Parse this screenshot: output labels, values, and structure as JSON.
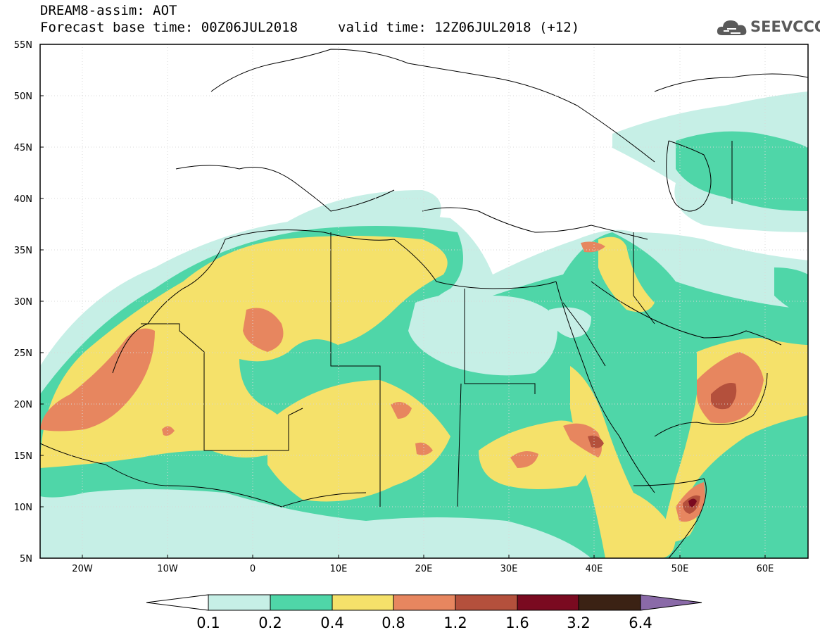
{
  "title": {
    "line1": "DREAM8-assim: AOT",
    "base": "Forecast base time: 00Z06JUL2018",
    "valid": "valid time: 12Z06JUL2018 (+12)"
  },
  "logo": {
    "text": "SEEVCCC",
    "icon": "cloud-icon"
  },
  "map": {
    "lon_range": [
      -25,
      65
    ],
    "lat_range": [
      5,
      55
    ],
    "lat_ticks": [
      "5N",
      "10N",
      "15N",
      "20N",
      "25N",
      "30N",
      "35N",
      "40N",
      "45N",
      "50N",
      "55N"
    ],
    "lon_ticks": [
      "20W",
      "10W",
      "0",
      "10E",
      "20E",
      "30E",
      "40E",
      "50E",
      "60E"
    ],
    "grid": true,
    "field": "Aerosol optical thickness (dust)"
  },
  "colorbar": {
    "labels": [
      "0.1",
      "0.2",
      "0.4",
      "0.8",
      "1.2",
      "1.6",
      "3.2",
      "6.4"
    ],
    "colors": [
      "#ffffff",
      "#c6efe6",
      "#4fd6a8",
      "#f5e16a",
      "#e7865f",
      "#b4503c",
      "#7a0a20",
      "#3b2214",
      "#8a6aa8"
    ]
  },
  "legend_levels": {
    "c1": "#c6efe6",
    "c2": "#4fd6a8",
    "c3": "#f5e16a",
    "c4": "#e7865f",
    "c5": "#b4503c",
    "c6": "#7a0a20",
    "c7": "#3b2214"
  }
}
